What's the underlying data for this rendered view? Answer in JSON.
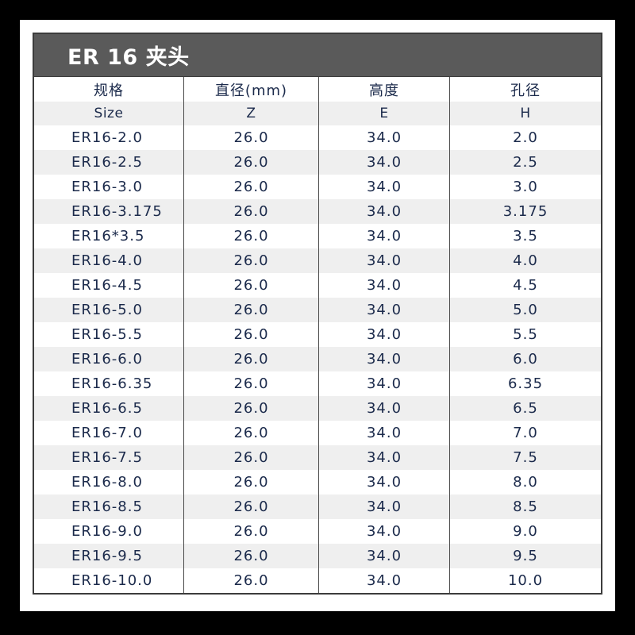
{
  "title": "ER 16 夹头",
  "columns": [
    {
      "cn": "规格",
      "en": "Size"
    },
    {
      "cn": "直径(mm)",
      "en": "Z"
    },
    {
      "cn": "高度",
      "en": "E"
    },
    {
      "cn": "孔径",
      "en": "H"
    }
  ],
  "rows": [
    [
      "ER16-2.0",
      "26.0",
      "34.0",
      "2.0"
    ],
    [
      "ER16-2.5",
      "26.0",
      "34.0",
      "2.5"
    ],
    [
      "ER16-3.0",
      "26.0",
      "34.0",
      "3.0"
    ],
    [
      "ER16-3.175",
      "26.0",
      "34.0",
      "3.175"
    ],
    [
      "ER16*3.5",
      "26.0",
      "34.0",
      "3.5"
    ],
    [
      "ER16-4.0",
      "26.0",
      "34.0",
      "4.0"
    ],
    [
      "ER16-4.5",
      "26.0",
      "34.0",
      "4.5"
    ],
    [
      "ER16-5.0",
      "26.0",
      "34.0",
      "5.0"
    ],
    [
      "ER16-5.5",
      "26.0",
      "34.0",
      "5.5"
    ],
    [
      "ER16-6.0",
      "26.0",
      "34.0",
      "6.0"
    ],
    [
      "ER16-6.35",
      "26.0",
      "34.0",
      "6.35"
    ],
    [
      "ER16-6.5",
      "26.0",
      "34.0",
      "6.5"
    ],
    [
      "ER16-7.0",
      "26.0",
      "34.0",
      "7.0"
    ],
    [
      "ER16-7.5",
      "26.0",
      "34.0",
      "7.5"
    ],
    [
      "ER16-8.0",
      "26.0",
      "34.0",
      "8.0"
    ],
    [
      "ER16-8.5",
      "26.0",
      "34.0",
      "8.5"
    ],
    [
      "ER16-9.0",
      "26.0",
      "34.0",
      "9.0"
    ],
    [
      "ER16-9.5",
      "26.0",
      "34.0",
      "9.5"
    ],
    [
      "ER16-10.0",
      "26.0",
      "34.0",
      "10.0"
    ]
  ],
  "colors": {
    "title_bar": "#5a5a5a",
    "text": "#1b2a4b",
    "stripe": "#efefef"
  }
}
